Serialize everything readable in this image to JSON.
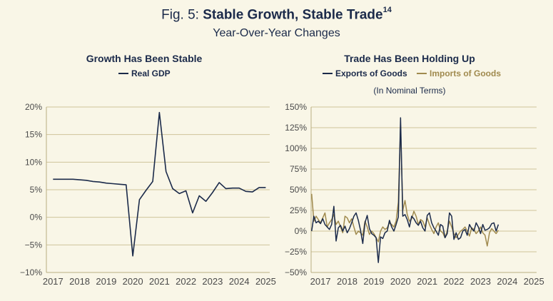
{
  "figure": {
    "prefix": "Fig. 5:",
    "title": "Stable Growth, Stable Trade",
    "superscript": "14",
    "subtitle": "Year-Over-Year Changes"
  },
  "colors": {
    "background": "#f9f6e7",
    "navy": "#1b2a4a",
    "gold": "#a08a4e",
    "grid": "#cfc49a",
    "axis_text": "#4a4a4a"
  },
  "chart_data": [
    {
      "type": "line",
      "title": "Growth Has Been Stable",
      "xlabel": "",
      "ylabel": "",
      "ylim": [
        -10,
        20
      ],
      "xlim": [
        2016.75,
        2025.15
      ],
      "yticks": [
        -10,
        -5,
        0,
        5,
        10,
        15,
        20
      ],
      "ytick_labels": [
        "−10%",
        "−5%",
        "0%",
        "5%",
        "10%",
        "15%",
        "20%"
      ],
      "xticks": [
        2017,
        2018,
        2019,
        2020,
        2021,
        2022,
        2023,
        2024,
        2025
      ],
      "xtick_labels": [
        "2017",
        "2018",
        "2019",
        "2020",
        "2021",
        "2022",
        "2023",
        "2024",
        "2025"
      ],
      "legend": [
        "Real GDP"
      ],
      "series": [
        {
          "name": "Real GDP",
          "color": "#1b2a4a",
          "x": [
            2017.0,
            2017.25,
            2017.5,
            2017.75,
            2018.0,
            2018.25,
            2018.5,
            2018.75,
            2019.0,
            2019.25,
            2019.5,
            2019.75,
            2020.0,
            2020.25,
            2020.5,
            2020.75,
            2021.0,
            2021.25,
            2021.5,
            2021.75,
            2022.0,
            2022.25,
            2022.5,
            2022.75,
            2023.0,
            2023.25,
            2023.5,
            2023.75,
            2024.0,
            2024.25,
            2024.5,
            2024.75,
            2025.0
          ],
          "values": [
            6.9,
            6.9,
            6.9,
            6.9,
            6.8,
            6.7,
            6.5,
            6.4,
            6.2,
            6.1,
            6.0,
            5.9,
            -7.0,
            3.2,
            4.9,
            6.5,
            19.0,
            8.3,
            5.2,
            4.3,
            4.8,
            0.8,
            3.9,
            2.9,
            4.5,
            6.3,
            5.2,
            5.3,
            5.3,
            4.7,
            4.6,
            5.4,
            5.4
          ]
        }
      ]
    },
    {
      "type": "line",
      "title": "Trade Has Been Holding Up",
      "subtitle": "(In Nominal Terms)",
      "xlabel": "",
      "ylabel": "",
      "ylim": [
        -50,
        150
      ],
      "xlim": [
        2016.65,
        2025.1
      ],
      "yticks": [
        -50,
        -25,
        0,
        25,
        50,
        75,
        100,
        125,
        150
      ],
      "ytick_labels": [
        "−50%",
        "−25%",
        "0%",
        "25%",
        "50%",
        "75%",
        "100%",
        "125%",
        "150%"
      ],
      "xticks": [
        2017,
        2018,
        2019,
        2020,
        2021,
        2022,
        2023,
        2024,
        2025
      ],
      "xtick_labels": [
        "2017",
        "2018",
        "2019",
        "2020",
        "2021",
        "2022",
        "2023",
        "2024",
        "2025"
      ],
      "legend": [
        "Exports of Goods",
        "Imports of Goods"
      ],
      "series": [
        {
          "name": "Exports of Goods",
          "color": "#1b2a4a",
          "x_start": 2016.67,
          "x_step": 0.0833,
          "values": [
            0,
            18,
            10,
            12,
            9,
            15,
            8,
            5,
            2,
            8,
            30,
            -12,
            4,
            7,
            0,
            6,
            -2,
            3,
            10,
            18,
            22,
            13,
            1,
            -15,
            10,
            19,
            3,
            -3,
            -5,
            -8,
            -38,
            -7,
            -9,
            -2,
            0,
            13,
            5,
            0,
            8,
            17,
            137,
            18,
            20,
            14,
            5,
            18,
            15,
            10,
            7,
            12,
            4,
            0,
            19,
            22,
            10,
            4,
            0,
            -5,
            8,
            6,
            -8,
            -3,
            22,
            18,
            -10,
            -2,
            -10,
            -8,
            0,
            2,
            -5,
            8,
            3,
            0,
            10,
            5,
            -3,
            8,
            1,
            2,
            4,
            9,
            10,
            0,
            8
          ]
        },
        {
          "name": "Imports of Goods",
          "color": "#a08a4e",
          "x_start": 2016.67,
          "x_step": 0.0833,
          "values": [
            45,
            12,
            18,
            14,
            10,
            16,
            22,
            5,
            10,
            14,
            20,
            8,
            12,
            5,
            -2,
            18,
            16,
            10,
            15,
            5,
            -4,
            0,
            -2,
            -5,
            12,
            5,
            -4,
            0,
            -3,
            -8,
            -13,
            0,
            5,
            2,
            4,
            10,
            8,
            5,
            12,
            35,
            128,
            25,
            37,
            20,
            12,
            15,
            24,
            18,
            8,
            14,
            12,
            5,
            16,
            8,
            2,
            -3,
            5,
            10,
            0,
            -2,
            -8,
            0,
            12,
            5,
            -3,
            -8,
            -4,
            0,
            2,
            5,
            0,
            -6,
            4,
            2,
            -3,
            0,
            5,
            -2,
            -5,
            -18,
            -2,
            3,
            0,
            -3,
            1
          ]
        }
      ]
    }
  ]
}
